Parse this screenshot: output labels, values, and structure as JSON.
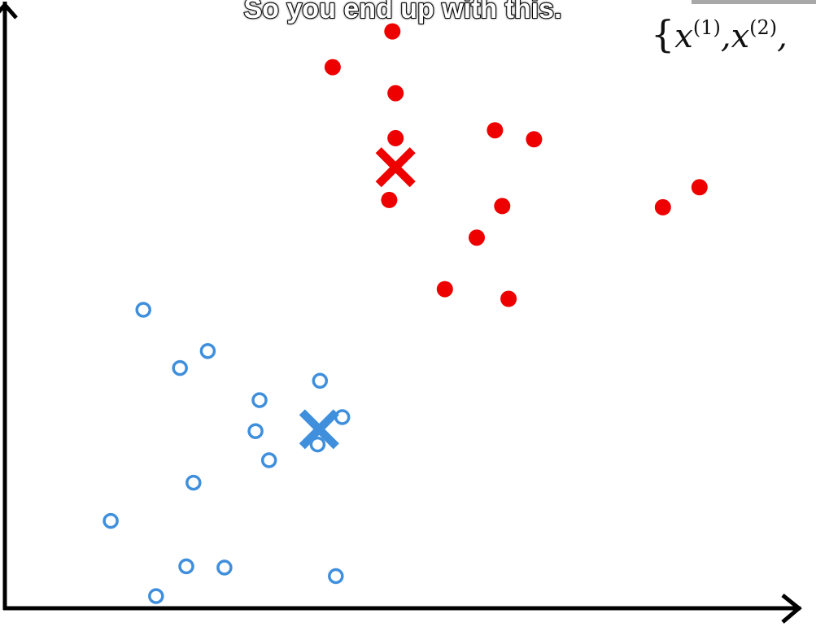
{
  "caption": "So you end up with this.",
  "math": {
    "brace": "{",
    "terms": [
      {
        "base": "x",
        "sup": "(1)",
        "sep": ","
      },
      {
        "base": "x",
        "sup": "(2)",
        "sep": ","
      }
    ]
  },
  "chart_data": {
    "type": "scatter",
    "title": "",
    "xlabel": "",
    "ylabel": "",
    "xlim": [
      0,
      100
    ],
    "ylim": [
      0,
      100
    ],
    "grid": false,
    "legend": "none",
    "colors": {
      "cluster_red": "#ee0000",
      "cluster_blue": "#3f8fdc",
      "axis": "#000000"
    },
    "series": [
      {
        "marker": "filled-circle",
        "color": "#ee0000",
        "points": [
          [
            48.7,
            95.1
          ],
          [
            41.2,
            89.2
          ],
          [
            49.1,
            84.9
          ],
          [
            49.1,
            77.5
          ],
          [
            61.6,
            78.8
          ],
          [
            66.5,
            77.3
          ],
          [
            48.3,
            67.3
          ],
          [
            62.5,
            66.3
          ],
          [
            82.7,
            66.1
          ],
          [
            87.3,
            69.4
          ],
          [
            59.3,
            61.1
          ],
          [
            55.3,
            52.6
          ],
          [
            63.3,
            51.0
          ]
        ]
      },
      {
        "marker": "open-circle",
        "color": "#3f8fdc",
        "points": [
          [
            17.4,
            49.2
          ],
          [
            25.5,
            42.4
          ],
          [
            22.0,
            39.6
          ],
          [
            39.6,
            37.5
          ],
          [
            32.0,
            34.3
          ],
          [
            42.4,
            31.5
          ],
          [
            31.5,
            29.2
          ],
          [
            39.3,
            27.0
          ],
          [
            33.2,
            24.4
          ],
          [
            23.7,
            20.7
          ],
          [
            13.3,
            14.4
          ],
          [
            22.8,
            6.9
          ],
          [
            27.6,
            6.7
          ],
          [
            41.6,
            5.3
          ],
          [
            19.0,
            2.0
          ]
        ]
      },
      {
        "marker": "centroid-cross",
        "color": "#ee0000",
        "points": [
          [
            49.1,
            72.7
          ]
        ]
      },
      {
        "marker": "centroid-cross",
        "color": "#3f8fdc",
        "points": [
          [
            39.5,
            29.5
          ]
        ]
      }
    ]
  }
}
